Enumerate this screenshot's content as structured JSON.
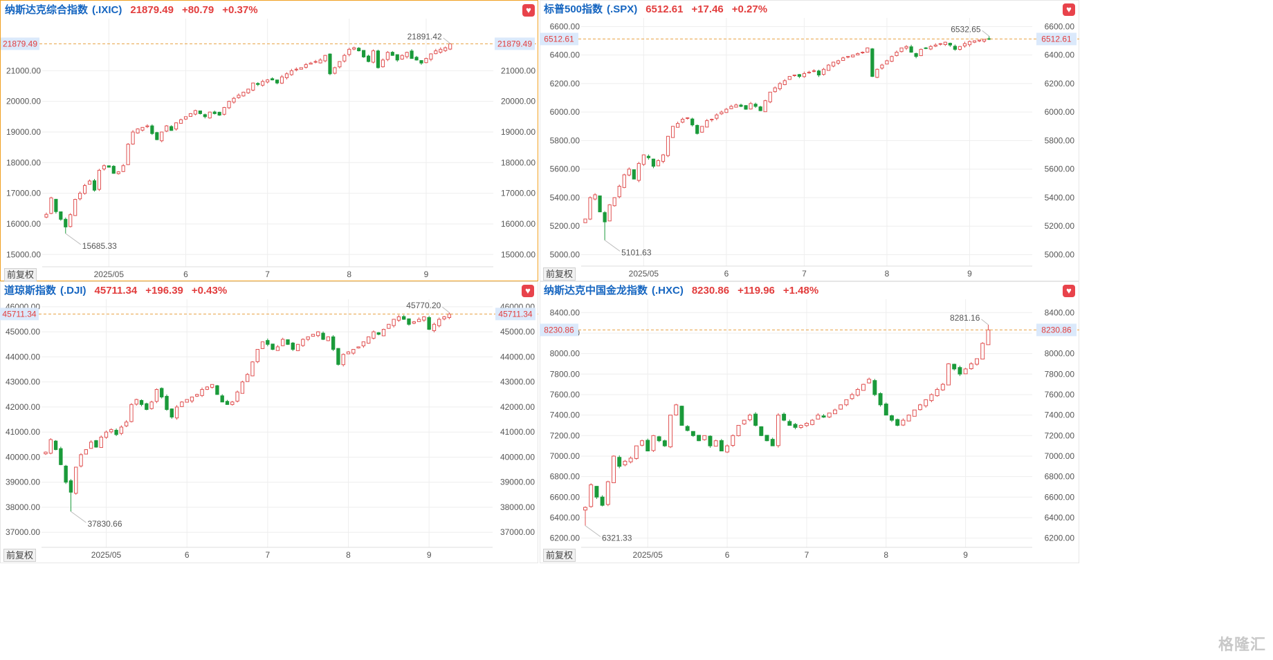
{
  "watermark": "格隆汇",
  "colors": {
    "up": "#e05050",
    "down": "#1a9a3a",
    "grid": "#eeeeee",
    "axis_text": "#555555",
    "ref_line": "#e8a040",
    "ref_label_bg": "#dbe9fb",
    "ref_label_text": "#e23d3d",
    "header_name": "#1565c0",
    "header_value": "#e23d3d"
  },
  "chart_data": [
    {
      "id": "ixic",
      "type": "candlestick",
      "title": "纳斯达克综合指数",
      "code": "(.IXIC)",
      "price": "21879.49",
      "change": "+80.79",
      "change_pct": "+0.37%",
      "ylim": [
        14600,
        22700
      ],
      "yticks": [
        "15000.00",
        "16000.00",
        "17000.00",
        "18000.00",
        "19000.00",
        "20000.00",
        "21000.00"
      ],
      "ref_label": "21879.49",
      "ref_value": 21879.49,
      "xlabels": [
        "2025/05",
        "6",
        "7",
        "8",
        "9"
      ],
      "xlabel_index": [
        16,
        37,
        58,
        80,
        101
      ],
      "high_label": "21891.42",
      "low_label": "15685.33",
      "adjust_label": "前复权",
      "closes": [
        16310,
        16850,
        16400,
        16150,
        15900,
        16300,
        16800,
        17000,
        17250,
        17400,
        17100,
        17750,
        17900,
        17850,
        17650,
        17700,
        17900,
        18600,
        19000,
        19100,
        19150,
        19200,
        18950,
        18750,
        19000,
        19200,
        19050,
        19300,
        19400,
        19500,
        19600,
        19700,
        19600,
        19500,
        19650,
        19600,
        19550,
        19800,
        20000,
        20100,
        20200,
        20300,
        20400,
        20600,
        20550,
        20650,
        20700,
        20700,
        20600,
        20800,
        20900,
        21000,
        21050,
        21100,
        21200,
        21250,
        21300,
        21350,
        21500,
        20900,
        21100,
        21300,
        21500,
        21700,
        21750,
        21650,
        21450,
        21300,
        21650,
        21100,
        21350,
        21600,
        21500,
        21350,
        21500,
        21600,
        21400,
        21350,
        21250,
        21400,
        21550,
        21650,
        21700,
        21750,
        21879
      ],
      "lo": 15685.33,
      "hi": 21891.42
    },
    {
      "id": "spx",
      "type": "candlestick",
      "title": "标普500指数",
      "code": "(.SPX)",
      "price": "6512.61",
      "change": "+17.46",
      "change_pct": "+0.27%",
      "ylim": [
        4920,
        6660
      ],
      "yticks": [
        "5000.00",
        "5200.00",
        "5400.00",
        "5600.00",
        "5800.00",
        "6000.00",
        "6200.00",
        "6400.00",
        "6600.00"
      ],
      "ref_label": "6512.61",
      "ref_value": 6512.61,
      "xlabels": [
        "2025/05",
        "6",
        "7",
        "8",
        "9"
      ],
      "xlabel_index": [
        16,
        37,
        58,
        80,
        101
      ],
      "high_label": "6532.65",
      "low_label": "5101.63",
      "adjust_label": "前复权",
      "closes": [
        5250,
        5400,
        5420,
        5300,
        5230,
        5350,
        5400,
        5480,
        5560,
        5600,
        5530,
        5640,
        5700,
        5680,
        5620,
        5660,
        5700,
        5830,
        5900,
        5920,
        5950,
        5960,
        5910,
        5850,
        5900,
        5940,
        5950,
        5980,
        6000,
        6020,
        6040,
        6050,
        6040,
        6020,
        6060,
        6040,
        6010,
        6080,
        6140,
        6170,
        6200,
        6220,
        6250,
        6260,
        6250,
        6270,
        6280,
        6290,
        6260,
        6300,
        6330,
        6350,
        6360,
        6380,
        6390,
        6400,
        6410,
        6420,
        6450,
        6250,
        6300,
        6330,
        6360,
        6390,
        6420,
        6450,
        6460,
        6420,
        6390,
        6440,
        6450,
        6460,
        6470,
        6480,
        6490,
        6470,
        6440,
        6460,
        6480,
        6495,
        6500,
        6505,
        6510,
        6512.61
      ],
      "lo": 5101.63,
      "hi": 6532.65
    },
    {
      "id": "dji",
      "type": "candlestick",
      "title": "道琼斯指数",
      "code": "(.DJI)",
      "price": "45711.34",
      "change": "+196.39",
      "change_pct": "+0.43%",
      "ylim": [
        36400,
        46300
      ],
      "yticks": [
        "37000.00",
        "38000.00",
        "39000.00",
        "40000.00",
        "41000.00",
        "42000.00",
        "43000.00",
        "44000.00",
        "45000.00",
        "46000.00"
      ],
      "ref_label": "45711.34",
      "ref_value": 45711.34,
      "xlabels": [
        "2025/05",
        "6",
        "7",
        "8",
        "9"
      ],
      "xlabel_index": [
        16,
        37,
        58,
        80,
        101
      ],
      "high_label": "45770.20",
      "low_label": "37830.66",
      "adjust_label": "前复权",
      "closes": [
        40200,
        40700,
        40300,
        39700,
        39000,
        38600,
        39600,
        40100,
        40300,
        40600,
        40400,
        40800,
        41000,
        41100,
        40900,
        41200,
        41400,
        42100,
        42300,
        42100,
        41900,
        42200,
        42700,
        42400,
        41900,
        41600,
        42000,
        42200,
        42300,
        42400,
        42500,
        42700,
        42800,
        42900,
        42500,
        42200,
        42100,
        42200,
        42600,
        43000,
        43300,
        43800,
        44300,
        44600,
        44500,
        44300,
        44400,
        44700,
        44500,
        44300,
        44500,
        44700,
        44800,
        44900,
        45000,
        44700,
        44800,
        44300,
        43700,
        44100,
        44200,
        44300,
        44400,
        44600,
        44800,
        45000,
        44900,
        45100,
        45300,
        45500,
        45600,
        45500,
        45300,
        45400,
        45500,
        45600,
        45100,
        45300,
        45500,
        45600,
        45711
      ],
      "lo": 37830.66,
      "hi": 45770.2
    },
    {
      "id": "hxc",
      "type": "candlestick",
      "title": "纳斯达克中国金龙指数",
      "code": "(.HXC)",
      "price": "8230.86",
      "change": "+119.96",
      "change_pct": "+1.48%",
      "ylim": [
        6110,
        8530
      ],
      "yticks": [
        "6200.00",
        "6400.00",
        "6600.00",
        "6800.00",
        "7000.00",
        "7200.00",
        "7400.00",
        "7600.00",
        "7800.00",
        "8000.00",
        "8200.00",
        "8400.00"
      ],
      "ref_label": "8230.86",
      "ref_value": 8230.86,
      "xlabels": [
        "2025/05",
        "6",
        "7",
        "8",
        "9"
      ],
      "xlabel_index": [
        16,
        37,
        58,
        80,
        101
      ],
      "high_label": "8281.16",
      "low_label": "6321.33",
      "adjust_label": "前复权",
      "closes": [
        6500,
        6720,
        6600,
        6520,
        6750,
        7000,
        6900,
        6950,
        6980,
        7100,
        7150,
        7050,
        7200,
        7150,
        7100,
        7400,
        7500,
        7300,
        7250,
        7200,
        7150,
        7200,
        7100,
        7150,
        7050,
        7100,
        7200,
        7300,
        7350,
        7400,
        7300,
        7200,
        7150,
        7100,
        7400,
        7350,
        7300,
        7280,
        7300,
        7320,
        7350,
        7400,
        7380,
        7420,
        7450,
        7500,
        7550,
        7600,
        7650,
        7700,
        7750,
        7600,
        7500,
        7400,
        7350,
        7300,
        7350,
        7400,
        7450,
        7500,
        7550,
        7600,
        7650,
        7700,
        7900,
        7850,
        7800,
        7850,
        7900,
        7950,
        8100,
        8230.86
      ],
      "lo": 6321.33,
      "hi": 8281.16
    }
  ]
}
